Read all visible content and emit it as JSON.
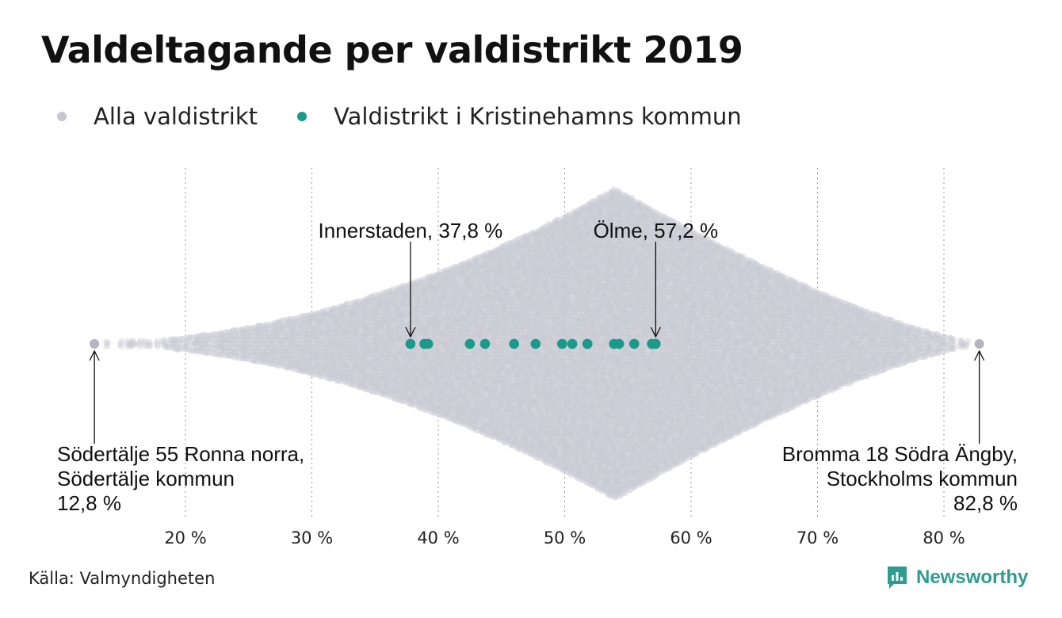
{
  "title": "Valdeltagande per valdistrikt 2019",
  "legend": {
    "all": {
      "label": "Alla valdistrikt",
      "color": "#c7c7d3"
    },
    "highlight": {
      "label": "Valdistrikt i Kristinehamns kommun",
      "color": "#1a9a8a"
    }
  },
  "source": "Källa: Valmyndigheten",
  "brand": "Newsworthy",
  "chart_data": {
    "type": "scatter",
    "variant": "beeswarm",
    "title": "Valdeltagande per valdistrikt 2019",
    "xlabel": "",
    "ylabel": "",
    "xlim": [
      12,
      84
    ],
    "x_ticks": [
      20,
      30,
      40,
      50,
      60,
      70,
      80
    ],
    "x_tick_labels": [
      "20 %",
      "30 %",
      "40 %",
      "50 %",
      "60 %",
      "70 %",
      "80 %"
    ],
    "grid": "vertical dotted",
    "legend_position": "top-left",
    "distribution": {
      "name": "Alla valdistrikt",
      "min": 12.8,
      "mode": 54,
      "max": 82.8
    },
    "series": [
      {
        "name": "Valdistrikt i Kristinehamns kommun",
        "values": [
          37.8,
          38.9,
          39.2,
          42.5,
          43.7,
          46.0,
          47.7,
          49.8,
          50.6,
          51.8,
          51.8,
          53.9,
          54.3,
          55.5,
          56.9,
          57.2
        ]
      }
    ],
    "annotations": [
      {
        "lines": [
          "Innerstaden, 37,8 %"
        ],
        "value": 37.8
      },
      {
        "lines": [
          "Ölme, 57,2 %"
        ],
        "value": 57.2
      },
      {
        "lines": [
          "Södertälje 55 Ronna norra,",
          "Södertälje kommun",
          "12,8 %"
        ],
        "value": 12.8
      },
      {
        "lines": [
          "Bromma 18 Södra Ängby,",
          "Stockholms kommun",
          "82,8 %"
        ],
        "value": 82.8
      }
    ]
  }
}
